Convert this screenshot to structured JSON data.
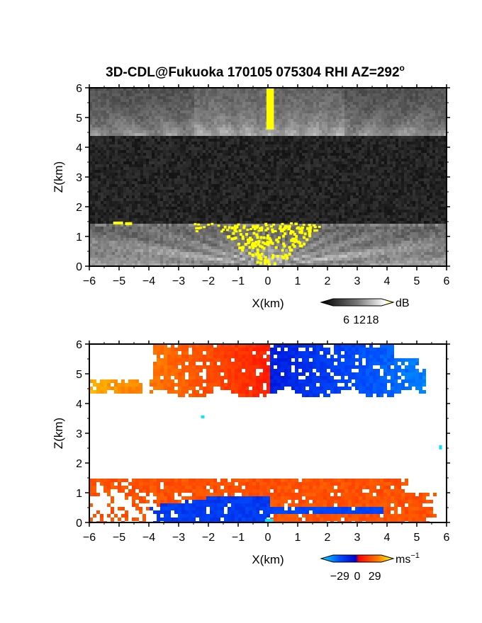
{
  "title": "3D-CDL@Fukuoka 170105 075304 RHI AZ=292",
  "title_superscript": "o",
  "chart_data": [
    {
      "type": "heatmap",
      "panel": "reflectivity",
      "xlabel": "X(km)",
      "ylabel": "Z(km)",
      "xlim": [
        -6,
        6
      ],
      "ylim": [
        0,
        6
      ],
      "x_ticks": [
        "−6",
        "−5",
        "−4",
        "−3",
        "−2",
        "−1",
        "0",
        "1",
        "2",
        "3",
        "4",
        "5",
        "6"
      ],
      "y_ticks": [
        "0",
        "1",
        "2",
        "3",
        "4",
        "5",
        "6"
      ],
      "colorbar": {
        "unit": "dB",
        "ticks": [
          "6",
          "12",
          "18"
        ],
        "tick_values": [
          6,
          12,
          18
        ],
        "range": [
          0,
          22
        ],
        "colors": [
          "#000000",
          "#ffffff",
          "#ffff00"
        ]
      },
      "layers": [
        {
          "name": "upper cloud",
          "z_range": [
            4.4,
            6.0
          ],
          "x_range": [
            -6,
            6
          ]
        },
        {
          "name": "lower cloud",
          "z_range": [
            0.0,
            1.5
          ],
          "x_range": [
            -6,
            6
          ]
        },
        {
          "name": "strong echo column",
          "x_range": [
            -0.05,
            0.2
          ],
          "z_range": [
            4.6,
            6.0
          ]
        }
      ]
    },
    {
      "type": "heatmap",
      "panel": "doppler_velocity",
      "xlabel": "X(km)",
      "ylabel": "Z(km)",
      "xlim": [
        -6,
        6
      ],
      "ylim": [
        0,
        6
      ],
      "x_ticks": [
        "−6",
        "−5",
        "−4",
        "−3",
        "−2",
        "−1",
        "0",
        "1",
        "2",
        "3",
        "4",
        "5",
        "6"
      ],
      "y_ticks": [
        "0",
        "1",
        "2",
        "3",
        "4",
        "5",
        "6"
      ],
      "colorbar": {
        "unit": "ms",
        "unit_exponent": "−1",
        "ticks": [
          "−29",
          "0",
          "29"
        ],
        "tick_values": [
          -29,
          0,
          29
        ],
        "range": [
          -40,
          40
        ],
        "colors": [
          "#00e5ff",
          "#0050ff",
          "#0000d0",
          "#ff0000",
          "#ff7a00",
          "#ffff00"
        ]
      },
      "regions": [
        {
          "name": "upper left",
          "x_range": [
            -6,
            0
          ],
          "z_range": [
            4.3,
            6.0
          ],
          "velocity_range": [
            8,
            29
          ]
        },
        {
          "name": "upper right",
          "x_range": [
            0,
            4.5
          ],
          "z_range": [
            4.3,
            6.0
          ],
          "velocity_range": [
            -29,
            -8
          ]
        },
        {
          "name": "lower layer",
          "x_range": [
            -6,
            5.3
          ],
          "z_range": [
            0.0,
            1.5
          ],
          "velocity_range": [
            -20,
            20
          ]
        }
      ]
    }
  ]
}
